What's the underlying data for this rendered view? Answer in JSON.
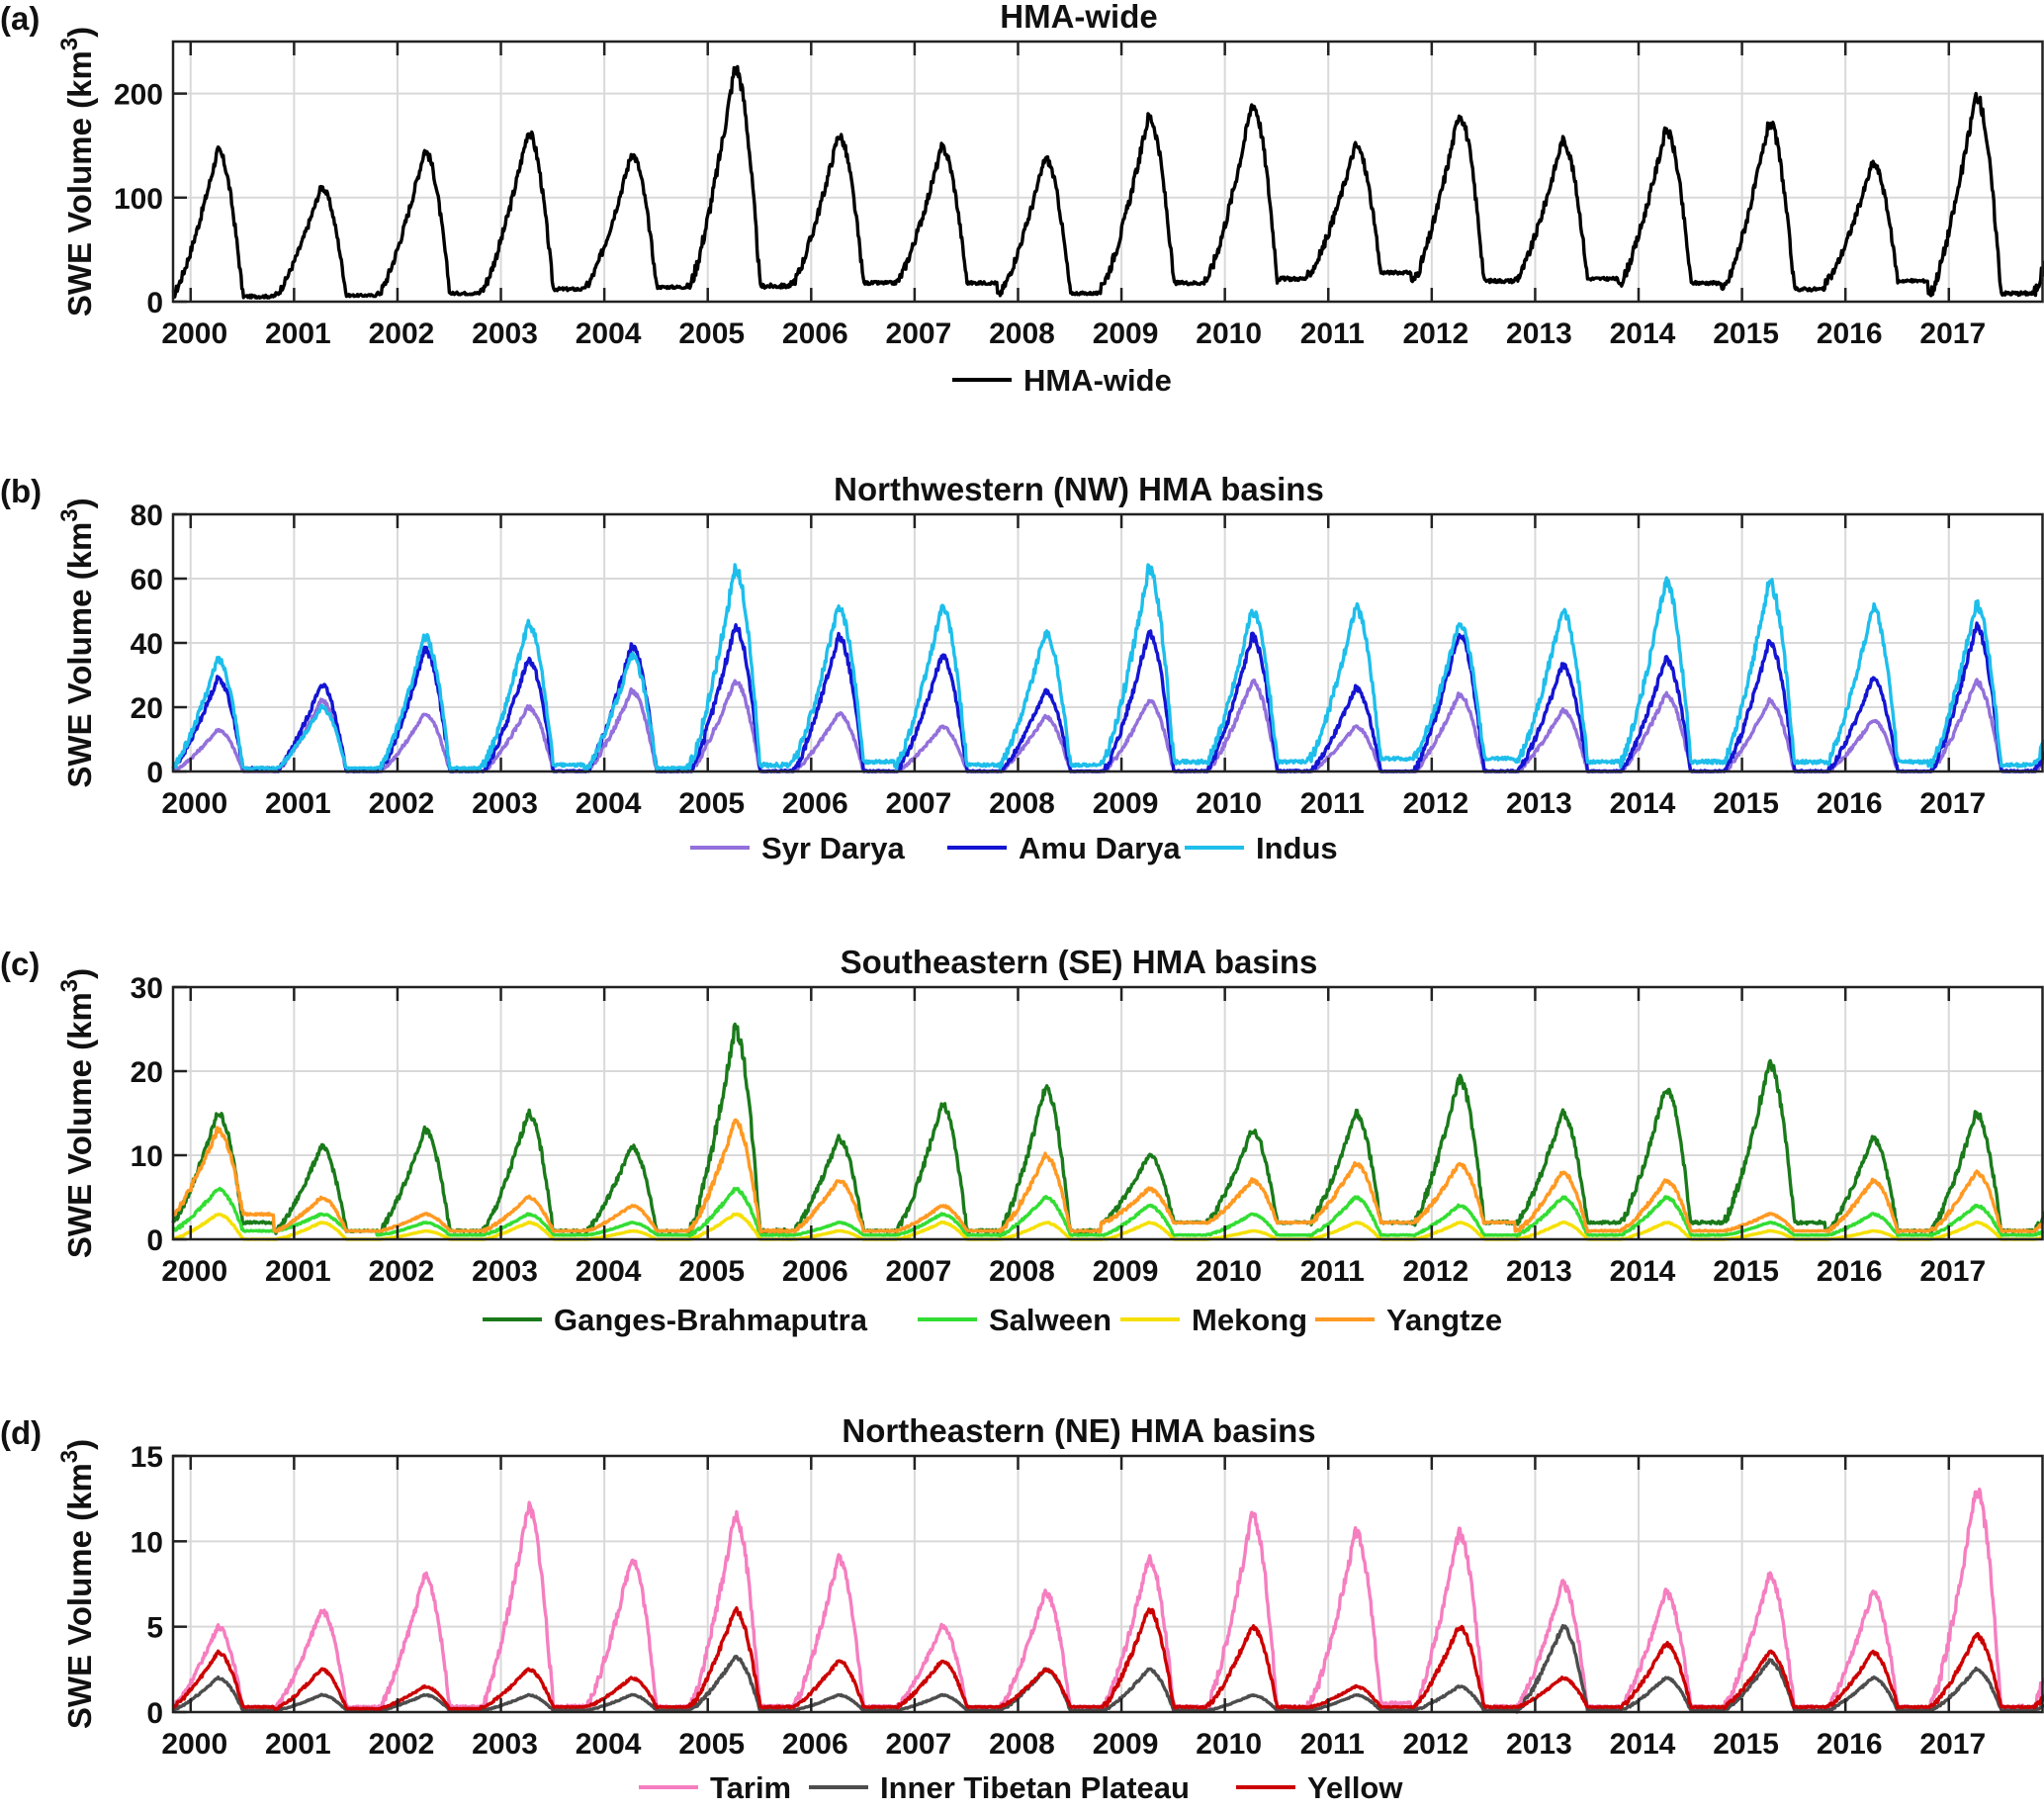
{
  "x_ticks": [
    "2000",
    "2001",
    "2002",
    "2003",
    "2004",
    "2005",
    "2006",
    "2007",
    "2008",
    "2009",
    "2010",
    "2011",
    "2012",
    "2013",
    "2014",
    "2015",
    "2016",
    "2017"
  ],
  "chart_data": [
    {
      "panel": "(a)",
      "type": "line",
      "title": "HMA-wide",
      "ylabel": "SWE Volume (km",
      "ylabel_sup": "3",
      "ylabel_close": ")",
      "xlim": [
        1999.83,
        2017.92
      ],
      "ylim": [
        0,
        250
      ],
      "yticks": [
        0,
        100,
        200
      ],
      "grid": true,
      "legend_position": "bottom-center",
      "series": [
        {
          "name": "HMA-wide",
          "color": "#000000",
          "peaks": [
            145,
            110,
            145,
            163,
            142,
            225,
            160,
            148,
            138,
            178,
            190,
            150,
            180,
            155,
            165,
            172,
            133,
            198
          ],
          "troughs": [
            5,
            6,
            8,
            12,
            14,
            15,
            18,
            18,
            8,
            18,
            22,
            28,
            20,
            22,
            18,
            12,
            20,
            8
          ]
        }
      ]
    },
    {
      "panel": "(b)",
      "type": "line",
      "title": "Northwestern (NW) HMA basins",
      "ylabel": "SWE Volume (km",
      "ylabel_sup": "3",
      "ylabel_close": ")",
      "xlim": [
        1999.83,
        2017.92
      ],
      "ylim": [
        0,
        80
      ],
      "yticks": [
        0,
        20,
        40,
        60,
        80
      ],
      "grid": true,
      "legend_position": "bottom-center",
      "series": [
        {
          "name": "Syr Darya",
          "color": "#9370DB",
          "peaks": [
            13,
            22,
            18,
            20,
            25,
            28,
            18,
            14,
            17,
            22,
            28,
            14,
            24,
            19,
            24,
            22,
            16,
            28
          ],
          "troughs": [
            0,
            0,
            0,
            0,
            0,
            0,
            0,
            0,
            0,
            0,
            0,
            0,
            0,
            0,
            0,
            0,
            0,
            0
          ]
        },
        {
          "name": "Amu Darya",
          "color": "#1414D2",
          "peaks": [
            29,
            27,
            38,
            35,
            39,
            45,
            42,
            36,
            25,
            43,
            42,
            26,
            43,
            33,
            35,
            40,
            29,
            45
          ],
          "troughs": [
            1,
            0,
            0,
            0,
            0,
            0,
            0,
            0,
            0,
            0,
            0,
            0,
            0,
            0,
            0,
            0,
            0,
            0
          ]
        },
        {
          "name": "Indus",
          "color": "#1EBEEB",
          "peaks": [
            35,
            20,
            42,
            46,
            36,
            63,
            51,
            51,
            43,
            63,
            50,
            51,
            46,
            50,
            59,
            59,
            51,
            52
          ],
          "troughs": [
            1,
            1,
            1,
            2,
            1,
            2,
            3,
            2,
            2,
            3,
            3,
            4,
            4,
            3,
            3,
            3,
            3,
            2
          ]
        }
      ]
    },
    {
      "panel": "(c)",
      "type": "line",
      "title": "Southeastern (SE) HMA basins",
      "ylabel": "SWE Volume (km",
      "ylabel_sup": "3",
      "ylabel_close": ")",
      "xlim": [
        1999.83,
        2017.92
      ],
      "ylim": [
        0,
        30
      ],
      "yticks": [
        0,
        10,
        20,
        30
      ],
      "grid": true,
      "legend_position": "bottom-center",
      "series": [
        {
          "name": "Ganges-Brahmaputra",
          "color": "#1A7A1A",
          "peaks": [
            15,
            11,
            13,
            15,
            11,
            25,
            12,
            16,
            18,
            10,
            13,
            15,
            19,
            15,
            18,
            21,
            12,
            15
          ],
          "troughs": [
            2,
            1,
            1,
            1,
            1,
            1,
            1,
            1,
            1,
            2,
            2,
            2,
            2,
            2,
            2,
            2,
            1,
            1
          ]
        },
        {
          "name": "Salween",
          "color": "#33DD33",
          "peaks": [
            6,
            3,
            2,
            3,
            2,
            6,
            2,
            3,
            5,
            4,
            3,
            5,
            4,
            5,
            5,
            2,
            3,
            4
          ],
          "troughs": [
            1,
            1,
            0.5,
            0.5,
            0.5,
            0.5,
            0.5,
            0.5,
            0.5,
            0.5,
            0.5,
            0.5,
            0.5,
            0.5,
            0.5,
            0.5,
            0.5,
            0.5
          ]
        },
        {
          "name": "Mekong",
          "color": "#F5E000",
          "peaks": [
            3,
            2,
            1,
            2,
            1,
            3,
            1,
            2,
            2,
            2,
            1,
            2,
            2,
            2,
            2,
            1,
            1,
            2
          ],
          "troughs": [
            0,
            0,
            0,
            0,
            0,
            0,
            0,
            0,
            0,
            0,
            0,
            0,
            0,
            0,
            0,
            0,
            0,
            0
          ]
        },
        {
          "name": "Yangtze",
          "color": "#FF9922",
          "peaks": [
            13,
            5,
            3,
            5,
            4,
            14,
            7,
            4,
            10,
            6,
            7,
            9,
            9,
            8,
            7,
            3,
            7,
            8
          ],
          "troughs": [
            3,
            1,
            1,
            1,
            1,
            1,
            1,
            1,
            1,
            2,
            2,
            2,
            2,
            1,
            1,
            1,
            1,
            1
          ]
        }
      ]
    },
    {
      "panel": "(d)",
      "type": "line",
      "title": "Northeastern (NE) HMA basins",
      "ylabel": "SWE Volume (km",
      "ylabel_sup": "3",
      "ylabel_close": ")",
      "xlim": [
        1999.83,
        2017.92
      ],
      "ylim": [
        0,
        15
      ],
      "yticks": [
        0,
        5,
        10,
        15
      ],
      "grid": true,
      "legend_position": "bottom-center",
      "series": [
        {
          "name": "Tarim",
          "color": "#F57EC0",
          "peaks": [
            5,
            6,
            8,
            12,
            9,
            11.5,
            9,
            5,
            7,
            9,
            11.5,
            10.5,
            10.5,
            7.5,
            7,
            8,
            7,
            13
          ],
          "troughs": [
            0.3,
            0.3,
            0.3,
            0.3,
            0.3,
            0.3,
            0.3,
            0.3,
            0.3,
            0.3,
            0.3,
            0.5,
            0.3,
            0.3,
            0.3,
            0.3,
            0.3,
            0.3
          ]
        },
        {
          "name": "Inner Tibetan Plateau",
          "color": "#4D4D4D",
          "peaks": [
            2,
            1,
            1,
            1,
            1,
            3.2,
            1,
            1,
            2.5,
            2.5,
            1,
            1,
            1.5,
            5,
            2,
            3,
            2,
            2.5
          ],
          "troughs": [
            0.1,
            0.1,
            0.1,
            0.1,
            0.1,
            0.1,
            0.1,
            0.1,
            0.1,
            0.1,
            0.1,
            0.1,
            0.1,
            0.1,
            0.1,
            0.1,
            0.1,
            0.1
          ]
        },
        {
          "name": "Yellow",
          "color": "#CC0000",
          "peaks": [
            3.5,
            2.5,
            1.5,
            2.5,
            2,
            6,
            3,
            3,
            2.5,
            6,
            5,
            1.5,
            5,
            2,
            4,
            3.5,
            3.5,
            4.5
          ],
          "troughs": [
            0.3,
            0.2,
            0.2,
            0.3,
            0.3,
            0.3,
            0.3,
            0.3,
            0.3,
            0.3,
            0.3,
            0.3,
            0.3,
            0.3,
            0.3,
            0.3,
            0.3,
            0.3
          ]
        }
      ]
    }
  ]
}
